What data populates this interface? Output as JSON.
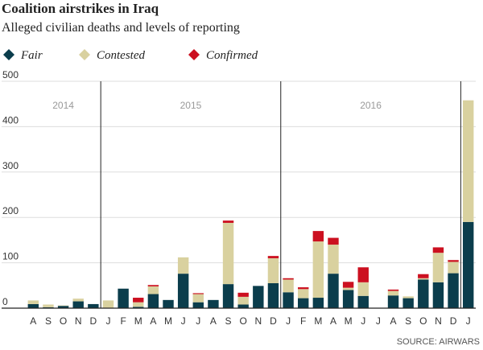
{
  "chart_data": {
    "type": "stacked_bar",
    "title": "Coalition airstrikes in Iraq",
    "subtitle": "Alleged civilian deaths and levels of reporting",
    "categories": [
      "A",
      "S",
      "O",
      "N",
      "D",
      "J",
      "F",
      "M",
      "A",
      "M",
      "J",
      "J",
      "A",
      "S",
      "O",
      "N",
      "D",
      "J",
      "F",
      "M",
      "A",
      "M",
      "J",
      "J",
      "A",
      "S",
      "O",
      "N",
      "D",
      "J"
    ],
    "series": [
      {
        "name": "Fair",
        "color": "#0b3d4c",
        "values": [
          9,
          2,
          5,
          15,
          9,
          0,
          43,
          3,
          31,
          18,
          76,
          13,
          18,
          53,
          8,
          49,
          55,
          35,
          22,
          23,
          76,
          40,
          27,
          0,
          28,
          22,
          63,
          57,
          77,
          190
        ]
      },
      {
        "name": "Contested",
        "color": "#d9d19f",
        "values": [
          8,
          6,
          1,
          6,
          0,
          17,
          0,
          10,
          17,
          0,
          36,
          18,
          0,
          135,
          17,
          0,
          55,
          28,
          20,
          124,
          64,
          5,
          30,
          0,
          10,
          4,
          3,
          65,
          25,
          268
        ]
      },
      {
        "name": "Confirmed",
        "color": "#cc1020",
        "values": [
          0,
          0,
          0,
          0,
          0,
          0,
          0,
          10,
          3,
          0,
          0,
          2,
          0,
          5,
          9,
          0,
          5,
          3,
          4,
          23,
          15,
          13,
          33,
          0,
          3,
          0,
          9,
          12,
          4,
          0
        ]
      }
    ],
    "annotations": [
      "2014",
      "2015",
      "2016"
    ],
    "ylim": [
      0,
      500
    ],
    "yticks": [
      0,
      100,
      200,
      300,
      400,
      500
    ],
    "grid": true,
    "source": "SOURCE: AIRWARS"
  }
}
